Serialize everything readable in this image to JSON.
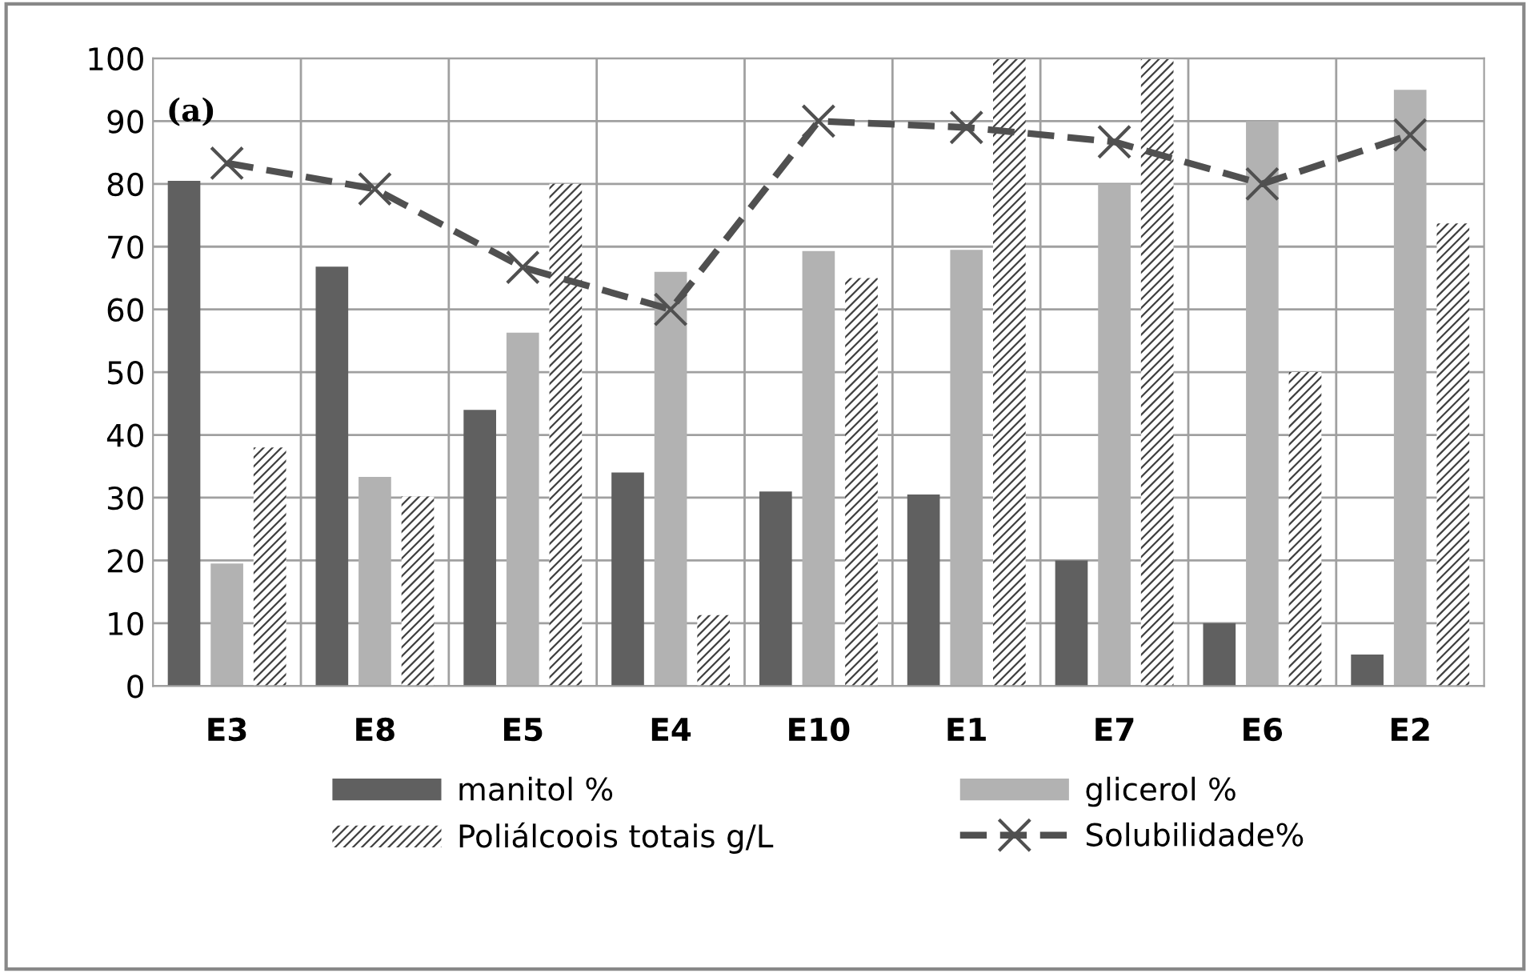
{
  "chart_data": {
    "type": "bar",
    "categories": [
      "E3",
      "E8",
      "E5",
      "E4",
      "E10",
      "E1",
      "E7",
      "E6",
      "E2"
    ],
    "series": [
      {
        "name": "manitol %",
        "color": "#606060",
        "values": [
          80.5,
          66.8,
          44,
          34,
          31,
          30.5,
          20,
          10,
          5
        ]
      },
      {
        "name": "glicerol %",
        "color": "#b2b2b2",
        "values": [
          19.5,
          33.3,
          56.3,
          66,
          69.3,
          69.5,
          80,
          90,
          95
        ]
      },
      {
        "name": "Poliálcoois totais g/L",
        "color": "#404040",
        "values": [
          38,
          30.2,
          80,
          11.3,
          65,
          100,
          100,
          50,
          73.7
        ]
      },
      {
        "name": "Solubilidade%",
        "type": "line",
        "color": "#505050",
        "line_style": "dashed",
        "marker": "cross",
        "values": [
          83.3,
          79.2,
          66.7,
          60,
          90,
          89,
          86.7,
          80,
          87.8
        ]
      }
    ],
    "ylim": [
      0,
      100
    ],
    "yticks": [
      0,
      10,
      20,
      30,
      40,
      50,
      60,
      70,
      80,
      90,
      100
    ],
    "grid": true,
    "legend": "bottom",
    "annotations": [
      "(a)"
    ]
  }
}
